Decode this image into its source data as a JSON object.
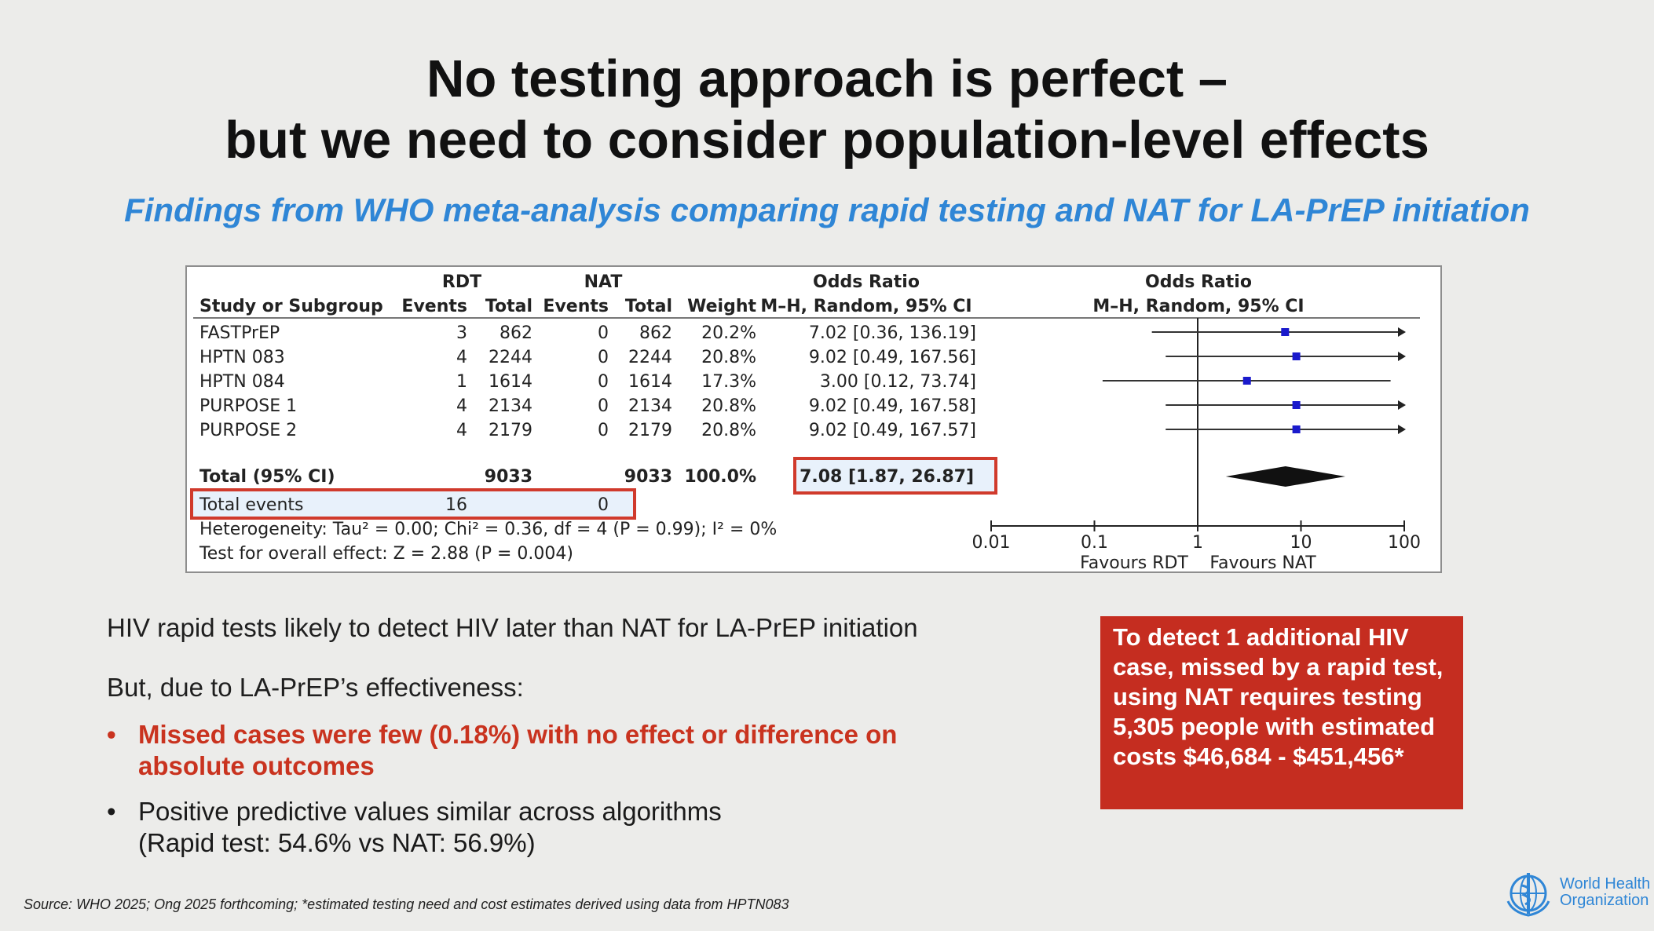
{
  "slide": {
    "title_line1": "No testing approach is perfect –",
    "title_line2": "but we need to consider population-level effects",
    "subtitle": "Findings from WHO meta-analysis comparing rapid testing and NAT for LA-PrEP initiation"
  },
  "forest_plot": {
    "group_rdt": "RDT",
    "group_nat": "NAT",
    "group_or_left": "Odds Ratio",
    "group_or_right": "Odds Ratio",
    "col_study": "Study or Subgroup",
    "col_events_rdt": "Events",
    "col_total_rdt": "Total",
    "col_events_nat": "Events",
    "col_total_nat": "Total",
    "col_weight": "Weight",
    "col_ci_left": "M–H, Random, 95% CI",
    "col_ci_right": "M–H, Random, 95% CI",
    "rows": [
      {
        "study": "FASTPrEP",
        "events_rdt": "3",
        "total_rdt": "862",
        "events_nat": "0",
        "total_nat": "862",
        "weight": "20.2%",
        "or_text": "7.02 [0.36, 136.19]"
      },
      {
        "study": "HPTN 083",
        "events_rdt": "4",
        "total_rdt": "2244",
        "events_nat": "0",
        "total_nat": "2244",
        "weight": "20.8%",
        "or_text": "9.02 [0.49, 167.56]"
      },
      {
        "study": "HPTN 084",
        "events_rdt": "1",
        "total_rdt": "1614",
        "events_nat": "0",
        "total_nat": "1614",
        "weight": "17.3%",
        "or_text": "3.00 [0.12, 73.74]"
      },
      {
        "study": "PURPOSE 1",
        "events_rdt": "4",
        "total_rdt": "2134",
        "events_nat": "0",
        "total_nat": "2134",
        "weight": "20.8%",
        "or_text": "9.02 [0.49, 167.58]"
      },
      {
        "study": "PURPOSE 2",
        "events_rdt": "4",
        "total_rdt": "2179",
        "events_nat": "0",
        "total_nat": "2179",
        "weight": "20.8%",
        "or_text": "9.02 [0.49, 167.57]"
      }
    ],
    "total_label": "Total (95% CI)",
    "total_rdt": "9033",
    "total_nat": "9033",
    "total_weight": "100.0%",
    "total_or_text": "7.08 [1.87, 26.87]",
    "events_label": "Total events",
    "events_rdt": "16",
    "events_nat": "0",
    "heterogeneity": "Heterogeneity: Tau² = 0.00; Chi² = 0.36, df = 4 (P = 0.99); I² = 0%",
    "overall_effect": "Test for overall effect: Z = 2.88 (P = 0.004)",
    "axis_ticks": [
      "0.01",
      "0.1",
      "1",
      "10",
      "100"
    ],
    "favours_left": "Favours RDT",
    "favours_right": "Favours NAT",
    "highlight_color": "#d03a2c",
    "marker_color": "#1a1acc"
  },
  "chart_data": {
    "type": "forest",
    "x_scale": "log",
    "xlim": [
      0.01,
      100
    ],
    "reference_line": 1,
    "studies": [
      {
        "name": "FASTPrEP",
        "or": 7.02,
        "lower": 0.36,
        "upper": 136.19
      },
      {
        "name": "HPTN 083",
        "or": 9.02,
        "lower": 0.49,
        "upper": 167.56
      },
      {
        "name": "HPTN 084",
        "or": 3.0,
        "lower": 0.12,
        "upper": 73.74
      },
      {
        "name": "PURPOSE 1",
        "or": 9.02,
        "lower": 0.49,
        "upper": 167.58
      },
      {
        "name": "PURPOSE 2",
        "or": 9.02,
        "lower": 0.49,
        "upper": 167.57
      }
    ],
    "pooled": {
      "name": "Total (95% CI)",
      "or": 7.08,
      "lower": 1.87,
      "upper": 26.87
    }
  },
  "findings": {
    "line1": "HIV rapid tests likely to detect HIV later than NAT for LA-PrEP initiation",
    "line2": "But, due to LA-PrEP’s effectiveness:",
    "bullet1": "Missed cases were few (0.18%) with no effect or difference on absolute outcomes",
    "bullet2_line1": "Positive predictive values similar across algorithms",
    "bullet2_line2": "(Rapid test: 54.6% vs NAT: 56.9%)",
    "bullet_glyph": "•"
  },
  "callout": {
    "text": "To detect 1 additional HIV case, missed by a rapid test, using NAT requires testing 5,305 people with estimated costs $46,684 - $451,456*"
  },
  "footer": {
    "source": "Source: WHO 2025; Ong 2025 forthcoming; *estimated testing need and cost estimates derived using data from HPTN083",
    "org_line1": "World Health",
    "org_line2": "Organization"
  }
}
